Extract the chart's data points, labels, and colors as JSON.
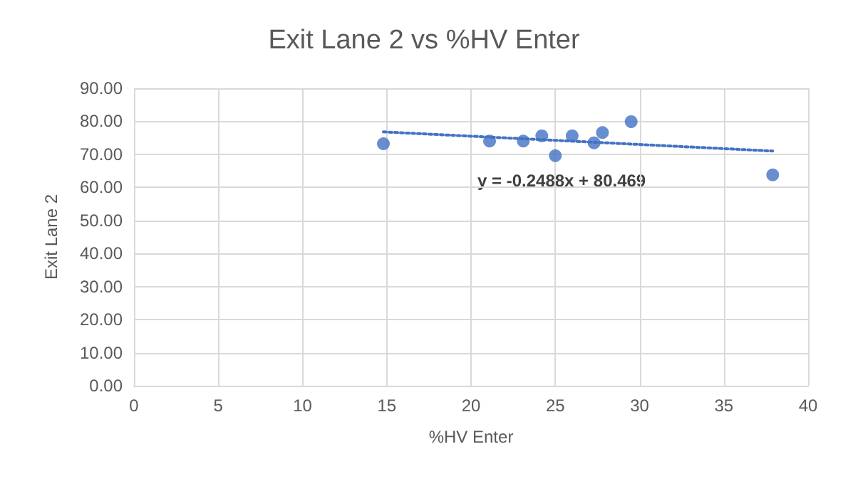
{
  "chart_data": {
    "type": "scatter",
    "title": "Exit Lane 2 vs %HV Enter",
    "xlabel": "%HV Enter",
    "ylabel": "Exit Lane 2",
    "xlim": [
      0,
      40
    ],
    "xticks": [
      0,
      5,
      10,
      15,
      20,
      25,
      30,
      35,
      40
    ],
    "ylim": [
      0,
      90
    ],
    "yticks": [
      {
        "value": 0,
        "label": "0.00"
      },
      {
        "value": 10,
        "label": "10.00"
      },
      {
        "value": 20,
        "label": "20.00"
      },
      {
        "value": 30,
        "label": "30.00"
      },
      {
        "value": 40,
        "label": "40.00"
      },
      {
        "value": 50,
        "label": "50.00"
      },
      {
        "value": 60,
        "label": "60.00"
      },
      {
        "value": 70,
        "label": "70.00"
      },
      {
        "value": 80,
        "label": "80.00"
      },
      {
        "value": 90,
        "label": "90.00"
      }
    ],
    "grid": true,
    "marker": "circle",
    "series": [
      {
        "color": "#4472c4",
        "x": [
          14.8,
          21.1,
          23.1,
          24.2,
          25.0,
          26.0,
          27.3,
          27.8,
          29.5,
          37.9
        ],
        "values": [
          73.2,
          74.0,
          74.0,
          75.6,
          69.6,
          75.6,
          73.5,
          76.6,
          79.9,
          63.8
        ]
      },
      {
        "type": "line",
        "color": "#4472c4",
        "line_style": "dotted",
        "marker": "none",
        "x": [
          14.8,
          37.9
        ],
        "values": [
          76.8,
          71.0
        ]
      }
    ],
    "annotations": [
      "y = -0.2488x + 80.469"
    ]
  }
}
